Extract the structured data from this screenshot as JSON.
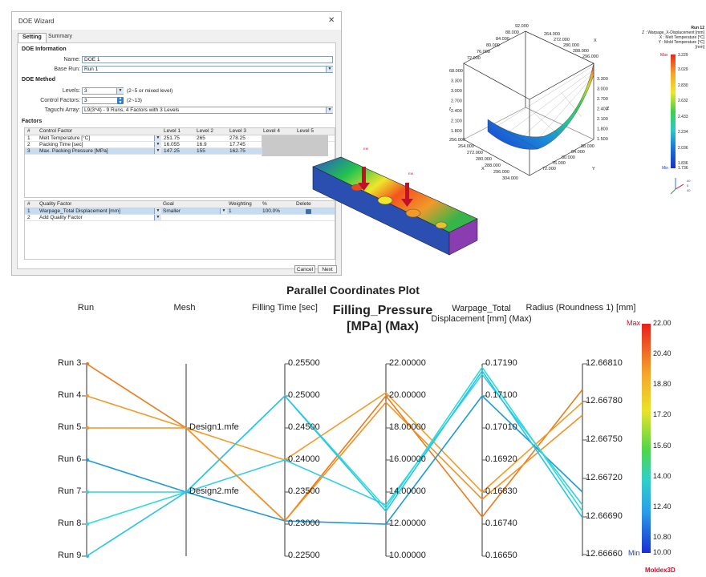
{
  "wizard": {
    "title": "DOE Wizard",
    "close_glyph": "✕",
    "tabs": [
      "Setting",
      "Summary"
    ],
    "doe_info": {
      "section": "DOE Information",
      "name_label": "Name:",
      "name_value": "DOE 1",
      "base_run_label": "Base Run:",
      "base_run_value": "Run 1"
    },
    "doe_method": {
      "section": "DOE Method",
      "levels_label": "Levels:",
      "levels_value": "3",
      "levels_hint": "(2~5 or mixed level)",
      "control_label": "Control Factors:",
      "control_value": "3",
      "control_hint": "(2~13)",
      "taguchi_label": "Taguchi Array:",
      "taguchi_value": "L9(3^4) - 9 Runs, 4 Factors with 3 Levels"
    },
    "factors": {
      "section": "Factors",
      "headers": [
        "#",
        "Control Factor",
        "Level 1",
        "Level 2",
        "Level 3",
        "Level 4",
        "Level 5"
      ],
      "rows": [
        {
          "n": "1",
          "factor": "Melt Temperature [°C]",
          "l1": "251.75",
          "l2": "265",
          "l3": "278.25"
        },
        {
          "n": "2",
          "factor": "Packing Time [sec]",
          "l1": "16.055",
          "l2": "16.9",
          "l3": "17.745"
        },
        {
          "n": "3",
          "factor": "Max. Packing Pressure [MPa]",
          "l1": "147.25",
          "l2": "155",
          "l3": "162.75"
        }
      ]
    },
    "quality": {
      "headers": [
        "#",
        "Quality Factor",
        "Goal",
        "Weighting",
        "%",
        "Delete"
      ],
      "rows": [
        {
          "n": "1",
          "factor": "Warpage_Total Displacement [mm]",
          "goal": "Smaller",
          "weight": "1",
          "pct": "100.0%"
        },
        {
          "n": "2",
          "factor": "Add Quality Factor",
          "goal": "",
          "weight": "",
          "pct": ""
        }
      ]
    },
    "cancel_label": "Cancel",
    "next_label": "Next"
  },
  "part3d": {
    "em_labels": [
      "EM",
      "EM"
    ]
  },
  "surface3d": {
    "run_label": "Run 12",
    "legend_lines": [
      "Z : Warpage_X-Displacement [mm]",
      "X : Melt Temperature [°C]",
      "Y : Mold Temperature [°C]",
      "[mm]"
    ],
    "legend_max_label": "Max",
    "legend_min_label": "Min",
    "legend_max_value": "3.229",
    "legend_min_value": "1.736",
    "legend_ticks": [
      "3.029",
      "2.830",
      "2.632",
      "2.433",
      "2.234",
      "2.036",
      "1.836"
    ],
    "top_x_ticks": [
      "92.000",
      "88.000",
      "84.000",
      "80.000",
      "76.000",
      "72.000"
    ],
    "top_right_ticks": [
      "264.000",
      "272.000",
      "280.000",
      "288.000",
      "296.000"
    ],
    "z_ticks": [
      "3.300",
      "3.000",
      "2.700",
      "2.400",
      "2.100",
      "1.800",
      "1.500"
    ],
    "left_z_ticks": [
      "68.000",
      "3.300",
      "3.000",
      "2.700",
      "2.400",
      "2.100",
      "1.800"
    ],
    "bottom_x_ticks": [
      "256.000",
      "264.000",
      "272.000",
      "280.000",
      "288.000",
      "296.000",
      "304.000"
    ],
    "bottom_y_ticks": [
      "88.000",
      "84.000",
      "80.000",
      "76.000",
      "72.000"
    ],
    "axis_x": "X",
    "axis_y": "Y",
    "axis_z": "Z",
    "triad_values": [
      "40",
      "0",
      "40"
    ]
  },
  "pcp": {
    "title": "Parallel Coordinates Plot",
    "axes": [
      {
        "title": [
          "Run"
        ],
        "ticks": [
          "Run 3",
          "Run 4",
          "Run 5",
          "Run 6",
          "Run 7",
          "Run 8",
          "Run 9"
        ]
      },
      {
        "title": [
          "Mesh"
        ],
        "ticks": [
          "Design1.mfe",
          "Design2.mfe"
        ]
      },
      {
        "title": [
          "Filling Time [sec]"
        ],
        "ticks": [
          "0.25500",
          "0.25000",
          "0.24500",
          "0.24000",
          "0.23500",
          "0.23000",
          "0.22500"
        ]
      },
      {
        "title": [
          "Filling_Pressure",
          "[MPa] (Max)"
        ],
        "ticks": [
          "22.00000",
          "20.00000",
          "18.00000",
          "16.00000",
          "14.00000",
          "12.00000",
          "10.00000"
        ]
      },
      {
        "title": [
          "Warpage_Total",
          "Displacement [mm] (Max)"
        ],
        "ticks": [
          "0.17190",
          "0.17100",
          "0.17010",
          "0.16920",
          "0.16830",
          "0.16740",
          "0.16650"
        ]
      },
      {
        "title": [
          "Radius (Roundness 1) [mm]"
        ],
        "ticks": [
          "12.66810",
          "12.66780",
          "12.66750",
          "12.66720",
          "12.66690",
          "12.66660"
        ]
      }
    ],
    "colorbar": {
      "max_label": "Max",
      "min_label": "Min",
      "ticks": [
        "22.00",
        "20.40",
        "18.80",
        "17.20",
        "15.60",
        "14.00",
        "12.40",
        "10.80",
        "10.00"
      ]
    },
    "logo": "Moldex3D"
  },
  "chart_data": {
    "type": "parallel-coordinates",
    "title": "Parallel Coordinates Plot",
    "dimensions": [
      "Run",
      "Mesh",
      "Filling Time [sec]",
      "Filling_Pressure [MPa] (Max)",
      "Warpage_Total Displacement [mm] (Max)",
      "Radius (Roundness 1) [mm]"
    ],
    "ranges": {
      "filling_time": [
        0.225,
        0.255
      ],
      "filling_pressure": [
        10,
        22
      ],
      "warpage": [
        0.1665,
        0.1719
      ],
      "radius": [
        12.6666,
        12.6681
      ]
    },
    "color_by": "Filling_Pressure [MPa] (Max)",
    "color_range": [
      10,
      22
    ],
    "series": [
      {
        "run": "Run 3",
        "mesh": "Design1.mfe",
        "filling_time": 0.2305,
        "filling_pressure": 20.0,
        "warpage": 0.1676,
        "radius": 12.6679,
        "color": "#ee7a19"
      },
      {
        "run": "Run 4",
        "mesh": "Design1.mfe",
        "filling_time": 0.24,
        "filling_pressure": 20.2,
        "warpage": 0.1683,
        "radius": 12.6678,
        "color": "#f49a26"
      },
      {
        "run": "Run 5",
        "mesh": "Design1.mfe",
        "filling_time": 0.2305,
        "filling_pressure": 19.6,
        "warpage": 0.1681,
        "radius": 12.6677,
        "color": "#f39124"
      },
      {
        "run": "Run 6",
        "mesh": "Design2.mfe",
        "filling_time": 0.2305,
        "filling_pressure": 12.0,
        "warpage": 0.171,
        "radius": 12.6671,
        "color": "#1e9bd7"
      },
      {
        "run": "Run 7",
        "mesh": "Design2.mfe",
        "filling_time": 0.24,
        "filling_pressure": 13.2,
        "warpage": 0.1716,
        "radius": 12.667,
        "color": "#35cde6"
      },
      {
        "run": "Run 8",
        "mesh": "Design2.mfe",
        "filling_time": 0.25,
        "filling_pressure": 13.0,
        "warpage": 0.1718,
        "radius": 12.66695,
        "color": "#2fdcd6"
      },
      {
        "run": "Run 9",
        "mesh": "Design2.mfe",
        "filling_time": 0.25,
        "filling_pressure": 12.8,
        "warpage": 0.1717,
        "radius": 12.6669,
        "color": "#28c4e8"
      }
    ]
  }
}
